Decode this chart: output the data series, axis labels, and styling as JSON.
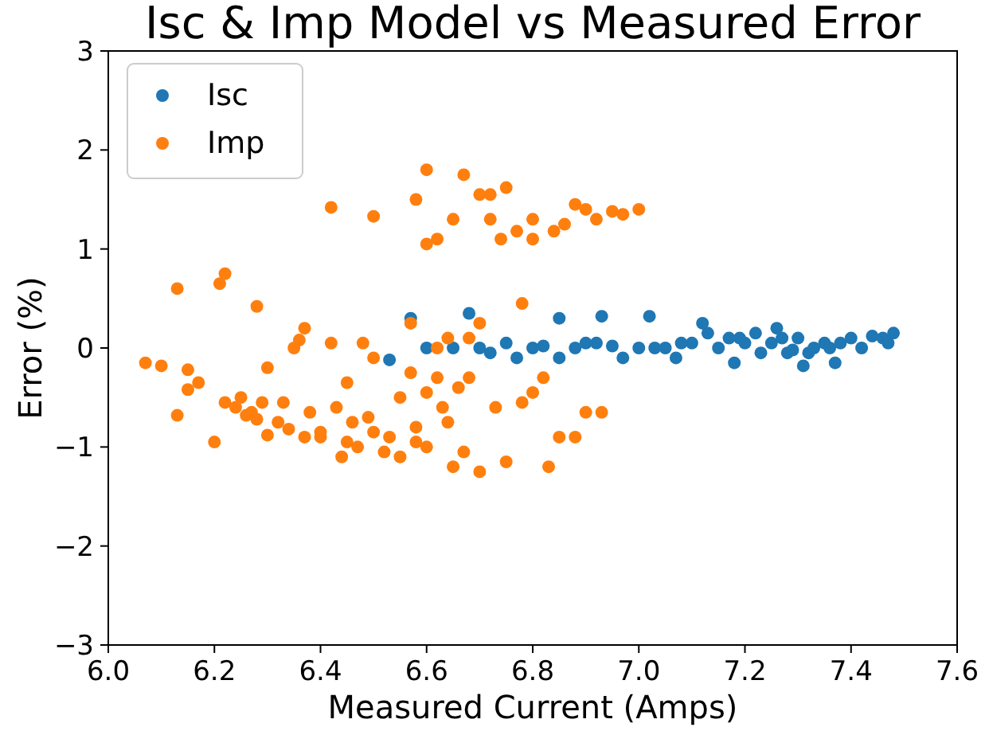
{
  "chart_data": {
    "type": "scatter",
    "title": "Isc & Imp Model vs Measured Error",
    "xlabel": "Measured Current (Amps)",
    "ylabel": "Error (%)",
    "xlim": [
      6.0,
      7.6
    ],
    "ylim": [
      -3,
      3
    ],
    "xticks": [
      {
        "value": 6.0,
        "label": "6.0"
      },
      {
        "value": 6.2,
        "label": "6.2"
      },
      {
        "value": 6.4,
        "label": "6.4"
      },
      {
        "value": 6.6,
        "label": "6.6"
      },
      {
        "value": 6.8,
        "label": "6.8"
      },
      {
        "value": 7.0,
        "label": "7.0"
      },
      {
        "value": 7.2,
        "label": "7.2"
      },
      {
        "value": 7.4,
        "label": "7.4"
      },
      {
        "value": 7.6,
        "label": "7.6"
      }
    ],
    "yticks": [
      {
        "value": -3,
        "label": "−3"
      },
      {
        "value": -2,
        "label": "−2"
      },
      {
        "value": -1,
        "label": "−1"
      },
      0,
      1,
      2,
      3
    ],
    "legend": "top left",
    "grid": false,
    "marker": "circle",
    "series": [
      {
        "name": "Isc",
        "color": "#1f77b4",
        "x": [
          6.53,
          6.57,
          6.6,
          6.65,
          6.68,
          6.7,
          6.72,
          6.75,
          6.77,
          6.8,
          6.82,
          6.85,
          6.85,
          6.88,
          6.9,
          6.92,
          6.93,
          6.95,
          6.97,
          7.0,
          7.02,
          7.05,
          7.07,
          7.1,
          7.13,
          7.15,
          7.17,
          7.18,
          7.2,
          7.22,
          7.23,
          7.25,
          7.27,
          7.28,
          7.29,
          7.3,
          7.32,
          7.33,
          7.35,
          7.37,
          7.38,
          7.4,
          7.42,
          7.44,
          7.46,
          7.47,
          7.48,
          7.12,
          7.26,
          7.31,
          7.19,
          7.08,
          7.03,
          7.36
        ],
        "values": [
          -0.12,
          0.3,
          0.0,
          0.0,
          0.35,
          0.0,
          -0.05,
          0.05,
          -0.1,
          0.0,
          0.02,
          0.3,
          -0.1,
          0.0,
          0.05,
          0.05,
          0.32,
          0.02,
          -0.1,
          0.0,
          0.32,
          0.0,
          -0.1,
          0.05,
          0.15,
          0.0,
          0.1,
          -0.15,
          0.05,
          0.15,
          -0.05,
          0.05,
          0.1,
          -0.05,
          -0.02,
          0.1,
          -0.05,
          0.0,
          0.05,
          -0.15,
          0.05,
          0.1,
          0.0,
          0.12,
          0.1,
          0.05,
          0.15,
          0.25,
          0.2,
          -0.18,
          0.1,
          0.05,
          0.0,
          0.0
        ]
      },
      {
        "name": "Imp",
        "color": "#ff7f0e",
        "x": [
          6.07,
          6.1,
          6.13,
          6.13,
          6.15,
          6.15,
          6.17,
          6.2,
          6.21,
          6.22,
          6.22,
          6.24,
          6.25,
          6.26,
          6.27,
          6.28,
          6.28,
          6.29,
          6.3,
          6.3,
          6.32,
          6.33,
          6.34,
          6.36,
          6.37,
          6.37,
          6.38,
          6.4,
          6.4,
          6.42,
          6.42,
          6.43,
          6.44,
          6.45,
          6.46,
          6.47,
          6.48,
          6.49,
          6.5,
          6.5,
          6.52,
          6.53,
          6.55,
          6.55,
          6.57,
          6.57,
          6.58,
          6.58,
          6.6,
          6.6,
          6.6,
          6.62,
          6.62,
          6.63,
          6.64,
          6.65,
          6.65,
          6.66,
          6.67,
          6.67,
          6.68,
          6.7,
          6.7,
          6.7,
          6.72,
          6.72,
          6.73,
          6.74,
          6.75,
          6.75,
          6.77,
          6.78,
          6.78,
          6.8,
          6.8,
          6.82,
          6.83,
          6.84,
          6.85,
          6.86,
          6.88,
          6.9,
          6.9,
          6.92,
          6.93,
          6.95,
          6.97,
          7.0,
          6.6,
          6.68,
          6.5,
          6.45,
          6.8,
          6.88,
          6.64,
          6.58,
          6.62,
          6.35
        ],
        "values": [
          -0.15,
          -0.18,
          0.6,
          -0.68,
          -0.22,
          -0.42,
          -0.35,
          -0.95,
          0.65,
          0.75,
          -0.55,
          -0.6,
          -0.5,
          -0.68,
          -0.65,
          0.42,
          -0.72,
          -0.55,
          -0.2,
          -0.88,
          -0.75,
          -0.55,
          -0.82,
          0.08,
          0.2,
          -0.9,
          -0.65,
          -0.85,
          -0.9,
          0.05,
          1.42,
          -0.6,
          -1.1,
          -0.95,
          -0.75,
          -1.0,
          0.05,
          -0.7,
          1.33,
          -0.85,
          -1.05,
          -0.9,
          -1.1,
          -0.5,
          0.25,
          -0.25,
          1.5,
          -0.95,
          1.05,
          1.8,
          -1.0,
          -0.3,
          1.1,
          -0.6,
          -0.75,
          1.3,
          -1.2,
          -0.4,
          1.75,
          -1.05,
          -0.3,
          1.55,
          0.25,
          -1.25,
          1.3,
          1.55,
          -0.6,
          1.1,
          1.62,
          -1.15,
          1.18,
          -0.55,
          0.45,
          1.3,
          1.1,
          -0.3,
          -1.2,
          1.18,
          -0.9,
          1.25,
          1.45,
          1.4,
          -0.65,
          1.3,
          -0.65,
          1.38,
          1.35,
          1.4,
          -0.45,
          0.1,
          -0.1,
          -0.35,
          -0.45,
          -0.9,
          0.1,
          -0.8,
          0.0,
          0.0
        ]
      }
    ]
  }
}
